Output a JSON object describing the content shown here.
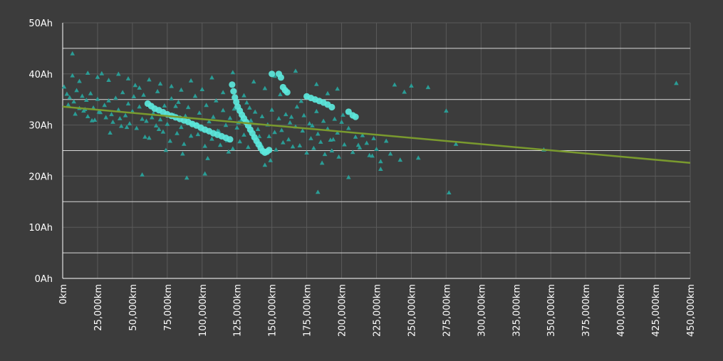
{
  "chart_data": {
    "type": "scatter",
    "title": "",
    "xlabel": "",
    "ylabel": "",
    "xlim": [
      0,
      450000
    ],
    "ylim": [
      0,
      50
    ],
    "x_ticks": [
      0,
      25000,
      50000,
      75000,
      100000,
      125000,
      150000,
      175000,
      200000,
      225000,
      250000,
      275000,
      300000,
      325000,
      350000,
      375000,
      400000,
      425000,
      450000
    ],
    "x_tick_labels": [
      "0km",
      "25,000km",
      "50,000km",
      "75,000km",
      "100,000km",
      "125,000km",
      "150,000km",
      "175,000km",
      "200,000km",
      "225,000km",
      "250,000km",
      "275,000km",
      "300,000km",
      "325,000km",
      "350,000km",
      "375,000km",
      "400,000km",
      "425,000km",
      "450,000km"
    ],
    "y_ticks": [
      0,
      10,
      20,
      30,
      40,
      50
    ],
    "y_tick_labels": [
      "0Ah",
      "10Ah",
      "20Ah",
      "30Ah",
      "40Ah",
      "50Ah"
    ],
    "grid": true,
    "colors": {
      "background": "#3c3c3c",
      "grid_major": "#d8d8d8",
      "grid_minor": "#5a5a5a",
      "fleet_points": "#2a9d96",
      "highlight_points": "#5ce8dc",
      "trendline": "#7a9a2e"
    },
    "trendline": {
      "x": [
        0,
        450000
      ],
      "y": [
        33.6,
        22.6
      ]
    },
    "series": [
      {
        "marker": "triangle",
        "color": "#2a9d96",
        "x": [
          1000,
          3000,
          5000,
          7000,
          8000,
          10000,
          12000,
          14000,
          15000,
          17000,
          18000,
          20000,
          22000,
          23000,
          25000,
          26000,
          28000,
          30000,
          31000,
          33000,
          35000,
          36000,
          38000,
          40000,
          42000,
          43000,
          45000,
          47000,
          48000,
          50000,
          52000,
          53000,
          55000,
          57000,
          58000,
          60000,
          62000,
          63000,
          65000,
          67000,
          68000,
          70000,
          72000,
          73000,
          75000,
          77000,
          78000,
          80000,
          82000,
          83000,
          85000,
          87000,
          88000,
          90000,
          92000,
          93000,
          95000,
          97000,
          98000,
          100000,
          102000,
          103000,
          105000,
          107000,
          108000,
          110000,
          112000,
          113000,
          115000,
          117000,
          118000,
          120000,
          122000,
          123000,
          125000,
          127000,
          128000,
          130000,
          132000,
          133000,
          135000,
          137000,
          138000,
          140000,
          142000,
          143000,
          145000,
          147000,
          148000,
          150000,
          152000,
          153000,
          155000,
          157000,
          158000,
          160000,
          162000,
          163000,
          165000,
          167000,
          168000,
          170000,
          172000,
          173000,
          175000,
          177000,
          178000,
          180000,
          182000,
          183000,
          185000,
          187000,
          188000,
          190000,
          192000,
          193000,
          195000,
          197000,
          198000,
          200000,
          202000,
          205000,
          208000,
          210000,
          213000,
          215000,
          218000,
          220000,
          223000,
          225000,
          228000,
          232000,
          235000,
          238000,
          242000,
          245000,
          250000,
          255000,
          262000,
          275000,
          277000,
          282000,
          345000,
          440000,
          7000,
          12000,
          18000,
          25000,
          33000,
          40000,
          47000,
          55000,
          62000,
          70000,
          78000,
          85000,
          92000,
          100000,
          107000,
          115000,
          122000,
          130000,
          137000,
          145000,
          152000,
          160000,
          167000,
          175000,
          182000,
          190000,
          197000,
          57000,
          89000,
          102000,
          145000,
          183000,
          205000,
          228000,
          4000,
          9000,
          16000,
          21000,
          27000,
          34000,
          41000,
          46000,
          51000,
          59000,
          64000,
          69000,
          74000,
          81000,
          86000,
          96000,
          104000,
          111000,
          119000,
          126000,
          134000,
          141000,
          149000,
          156000,
          164000,
          171000,
          179000,
          186000,
          194000,
          201000,
          212000,
          222000
        ],
        "y": [
          37.5,
          36.1,
          35.4,
          44.0,
          34.6,
          36.8,
          33.3,
          35.7,
          32.8,
          34.9,
          31.7,
          36.2,
          33.4,
          31.0,
          35.1,
          32.6,
          40.1,
          33.9,
          31.5,
          34.8,
          32.1,
          30.6,
          35.3,
          33.0,
          29.8,
          36.4,
          31.9,
          34.2,
          30.3,
          32.7,
          37.8,
          29.4,
          33.6,
          31.2,
          35.9,
          30.8,
          27.5,
          34.1,
          32.3,
          29.9,
          36.6,
          31.1,
          28.7,
          33.8,
          30.2,
          26.9,
          35.2,
          32.0,
          28.4,
          34.5,
          29.6,
          26.3,
          31.8,
          33.5,
          27.9,
          30.4,
          35.7,
          28.2,
          32.4,
          29.1,
          25.9,
          33.9,
          30.7,
          27.3,
          31.6,
          34.8,
          28.8,
          26.1,
          32.9,
          30.0,
          27.0,
          31.4,
          25.4,
          33.2,
          29.5,
          26.8,
          31.0,
          28.1,
          34.4,
          25.7,
          30.9,
          27.6,
          32.6,
          29.2,
          26.4,
          31.7,
          24.9,
          30.1,
          27.8,
          33.0,
          28.6,
          25.2,
          31.3,
          29.0,
          26.6,
          32.1,
          27.2,
          30.5,
          25.8,
          29.7,
          33.6,
          26.0,
          28.9,
          31.9,
          24.6,
          30.3,
          27.4,
          25.5,
          32.7,
          28.3,
          26.7,
          30.8,
          24.3,
          29.3,
          27.1,
          25.0,
          31.2,
          28.5,
          23.8,
          30.6,
          26.2,
          29.4,
          24.7,
          27.7,
          25.6,
          28.0,
          26.5,
          24.1,
          27.4,
          25.3,
          22.9,
          26.9,
          24.4,
          37.9,
          23.2,
          36.5,
          37.7,
          23.6,
          37.4,
          32.8,
          16.8,
          26.3,
          25.2,
          38.2,
          39.7,
          38.6,
          40.2,
          39.4,
          38.8,
          40.0,
          39.1,
          37.3,
          38.9,
          38.1,
          37.6,
          36.9,
          38.7,
          37.0,
          39.3,
          36.4,
          40.3,
          35.8,
          38.5,
          37.2,
          39.6,
          36.7,
          40.6,
          35.5,
          38.0,
          36.2,
          37.1,
          20.3,
          19.7,
          20.5,
          22.2,
          16.9,
          19.8,
          21.4,
          34.0,
          32.2,
          33.1,
          30.9,
          32.5,
          28.5,
          31.3,
          29.6,
          35.6,
          27.7,
          31.5,
          29.2,
          25.1,
          33.7,
          24.4,
          30.2,
          23.5,
          28.9,
          24.8,
          30.5,
          33.4,
          27.8,
          23.1,
          36.0,
          31.6,
          34.7,
          29.9,
          22.6,
          27.2,
          32.0,
          26.1,
          24.0
        ]
      },
      {
        "marker": "circle",
        "color": "#5ce8dc",
        "x": [
          61000,
          63500,
          66000,
          69000,
          72000,
          75000,
          78000,
          81000,
          84000,
          87000,
          90000,
          93000,
          96000,
          99000,
          102000,
          105000,
          108000,
          111000,
          114000,
          117000,
          120000,
          121500,
          122500,
          123500,
          124500,
          125500,
          127000,
          128500,
          130000,
          131500,
          133000,
          134500,
          136000,
          137500,
          139000,
          140500,
          142000,
          143500,
          145000,
          146500,
          148000,
          150000,
          155000,
          156500,
          158000,
          159500,
          161000,
          175000,
          178000,
          181000,
          184000,
          187000,
          190000,
          193000,
          205000,
          208000,
          210000
        ],
        "y": [
          34.2,
          33.7,
          33.2,
          32.9,
          32.5,
          32.1,
          31.8,
          31.5,
          31.2,
          30.9,
          30.6,
          30.2,
          29.9,
          29.5,
          29.1,
          28.8,
          28.4,
          28.1,
          27.8,
          27.5,
          27.2,
          37.9,
          36.6,
          35.4,
          34.5,
          33.6,
          32.8,
          32.0,
          31.3,
          30.6,
          29.9,
          29.1,
          28.4,
          27.6,
          26.9,
          26.2,
          25.5,
          24.9,
          24.6,
          24.8,
          25.1,
          40.0,
          40.0,
          39.3,
          37.4,
          36.8,
          36.4,
          35.6,
          35.3,
          35.0,
          34.7,
          34.4,
          34.0,
          33.5,
          32.6,
          31.9,
          31.6
        ]
      }
    ]
  }
}
